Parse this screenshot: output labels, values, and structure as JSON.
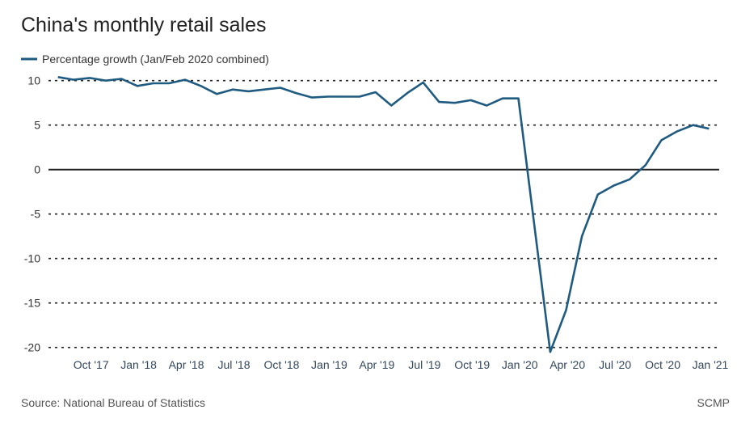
{
  "chart_data": {
    "type": "line",
    "title": "China's monthly retail sales",
    "xlabel": "",
    "ylabel": "",
    "ylim": [
      -20,
      10
    ],
    "yticks": [
      10,
      5,
      0,
      -5,
      -10,
      -15,
      -20
    ],
    "grid": true,
    "legend_placement": "top-left",
    "x_tick_labels": [
      "Oct '17",
      "Jan '18",
      "Apr '18",
      "Jul '18",
      "Oct '18",
      "Jan '19",
      "Apr '19",
      "Jul '19",
      "Oct '19",
      "Jan '20",
      "Apr '20",
      "Jul '20",
      "Oct '20",
      "Jan '21"
    ],
    "x": [
      "2017-07",
      "2017-08",
      "2017-09",
      "2017-10",
      "2017-11",
      "2017-12",
      "2018-01",
      "2018-02",
      "2018-03",
      "2018-04",
      "2018-05",
      "2018-06",
      "2018-07",
      "2018-08",
      "2018-09",
      "2018-10",
      "2018-11",
      "2018-12",
      "2019-01",
      "2019-02",
      "2019-03",
      "2019-04",
      "2019-05",
      "2019-06",
      "2019-07",
      "2019-08",
      "2019-09",
      "2019-10",
      "2019-11",
      "2019-12",
      "2020-01",
      "2020-02",
      "2020-03",
      "2020-04",
      "2020-05",
      "2020-06",
      "2020-07",
      "2020-08",
      "2020-09",
      "2020-10",
      "2020-11",
      "2020-12"
    ],
    "series": [
      {
        "name": "Percentage growth (Jan/Feb 2020 combined)",
        "color": "#1f5a80",
        "values": [
          10.4,
          10.1,
          10.3,
          10.0,
          10.2,
          9.4,
          9.7,
          9.7,
          10.1,
          9.4,
          8.5,
          9.0,
          8.8,
          9.0,
          9.2,
          8.6,
          8.1,
          8.2,
          8.2,
          8.2,
          8.7,
          7.2,
          8.6,
          9.8,
          7.6,
          7.5,
          7.8,
          7.2,
          8.0,
          8.0,
          null,
          -20.5,
          -15.8,
          -7.5,
          -2.8,
          -1.8,
          -1.1,
          0.5,
          3.3,
          4.3,
          5.0,
          4.6
        ]
      }
    ]
  },
  "footer": {
    "source": "Source: National Bureau of Statistics",
    "credit": "SCMP"
  }
}
